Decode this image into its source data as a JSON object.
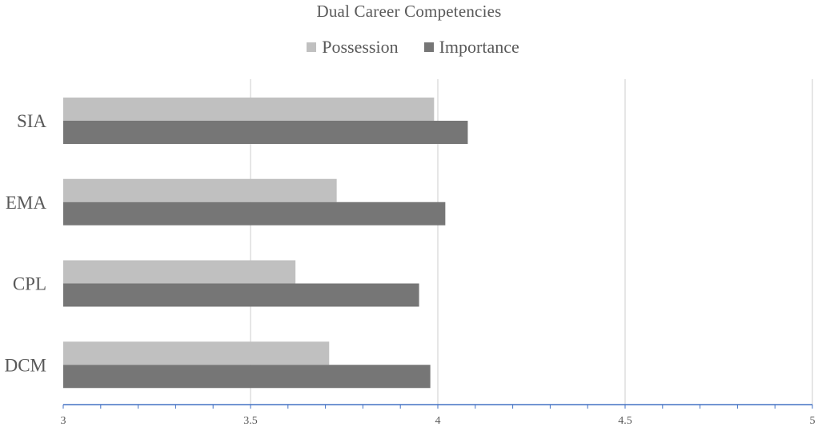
{
  "chart_data": {
    "type": "bar",
    "orientation": "horizontal",
    "title": "Dual Career Competencies",
    "categories": [
      "SIA",
      "EMA",
      "CPL",
      "DCM"
    ],
    "series": [
      {
        "name": "Possession",
        "color": "#c0c0c0",
        "values": [
          3.99,
          3.73,
          3.62,
          3.71
        ]
      },
      {
        "name": "Importance",
        "color": "#767676",
        "values": [
          4.08,
          4.02,
          3.95,
          3.98
        ]
      }
    ],
    "xlim": [
      3,
      5
    ],
    "xticks": [
      "3",
      "3.5",
      "4",
      "4.5",
      "5"
    ],
    "xtick_values": [
      3,
      3.5,
      4,
      4.5,
      5
    ],
    "grid": true,
    "legend_position": "top",
    "axis_color": "#4472c4",
    "grid_color": "#d9d9d9"
  }
}
